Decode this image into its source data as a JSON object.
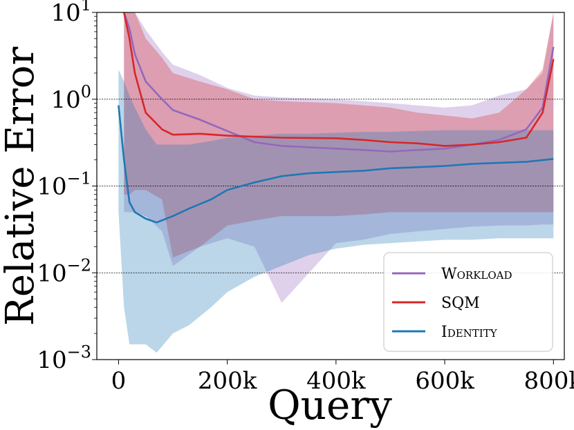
{
  "chart_data": {
    "type": "line",
    "xlabel": "Query",
    "ylabel": "Relative Error",
    "xlim": [
      -40000,
      820000
    ],
    "ylim": [
      0.001,
      10
    ],
    "yscale": "log",
    "grid": "horizontal dashed at 10^-2, 10^-1, 10^0",
    "legend_position": "lower-right",
    "x_ticks": [
      {
        "value": 0,
        "label": "0"
      },
      {
        "value": 200000,
        "label": "200k"
      },
      {
        "value": 400000,
        "label": "400k"
      },
      {
        "value": 600000,
        "label": "600k"
      },
      {
        "value": 800000,
        "label": "800k"
      }
    ],
    "y_ticks": [
      {
        "value": 0.001,
        "base": "10",
        "exp": "−3"
      },
      {
        "value": 0.01,
        "base": "10",
        "exp": "−2"
      },
      {
        "value": 0.1,
        "base": "10",
        "exp": "−1"
      },
      {
        "value": 1,
        "base": "10",
        "exp": "0"
      },
      {
        "value": 10,
        "base": "10",
        "exp": "1"
      }
    ],
    "series": [
      {
        "name": "Workload",
        "color": "#9467bd",
        "x": [
          10000,
          20000,
          30000,
          50000,
          80000,
          100000,
          150000,
          200000,
          250000,
          300000,
          400000,
          450000,
          500000,
          550000,
          600000,
          650000,
          700000,
          750000,
          780000,
          800000
        ],
        "mean": [
          10,
          6.5,
          3.3,
          1.6,
          1.0,
          0.75,
          0.58,
          0.43,
          0.32,
          0.29,
          0.27,
          0.26,
          0.25,
          0.26,
          0.27,
          0.3,
          0.34,
          0.45,
          0.8,
          4.0
        ],
        "upper": [
          10,
          10,
          10,
          6.3,
          3.5,
          2.5,
          1.9,
          1.35,
          1.1,
          1.05,
          1.0,
          0.95,
          0.9,
          0.85,
          0.8,
          0.85,
          1.1,
          1.3,
          2.0,
          10
        ],
        "lower": [
          0.05,
          0.05,
          0.05,
          0.045,
          0.03,
          0.012,
          0.02,
          0.025,
          0.02,
          0.0045,
          0.022,
          0.024,
          0.028,
          0.03,
          0.032,
          0.034,
          0.035,
          0.035,
          0.036,
          0.036
        ]
      },
      {
        "name": "SQM",
        "color": "#d62728",
        "x": [
          10000,
          20000,
          30000,
          50000,
          80000,
          100000,
          150000,
          200000,
          250000,
          300000,
          400000,
          450000,
          500000,
          550000,
          600000,
          650000,
          700000,
          750000,
          780000,
          800000
        ],
        "mean": [
          10,
          5.0,
          2.0,
          0.7,
          0.45,
          0.39,
          0.4,
          0.38,
          0.37,
          0.36,
          0.355,
          0.34,
          0.32,
          0.31,
          0.29,
          0.3,
          0.32,
          0.36,
          0.7,
          2.9
        ],
        "upper": [
          10,
          10,
          10,
          5.0,
          3.0,
          2.0,
          1.6,
          1.3,
          1.0,
          0.95,
          0.9,
          0.85,
          0.8,
          0.7,
          0.65,
          0.6,
          0.7,
          1.3,
          2.2,
          10
        ],
        "lower": [
          0.08,
          0.08,
          0.09,
          0.09,
          0.07,
          0.015,
          0.02,
          0.035,
          0.04,
          0.045,
          0.045,
          0.047,
          0.05,
          0.05,
          0.05,
          0.05,
          0.05,
          0.05,
          0.05,
          0.05
        ]
      },
      {
        "name": "Identity",
        "color": "#1f77b4",
        "x": [
          0,
          10000,
          20000,
          30000,
          50000,
          70000,
          100000,
          130000,
          170000,
          200000,
          250000,
          300000,
          350000,
          400000,
          450000,
          500000,
          550000,
          600000,
          650000,
          700000,
          750000,
          800000
        ],
        "mean": [
          0.85,
          0.2,
          0.065,
          0.05,
          0.042,
          0.038,
          0.045,
          0.055,
          0.07,
          0.09,
          0.11,
          0.13,
          0.14,
          0.145,
          0.15,
          0.16,
          0.165,
          0.17,
          0.18,
          0.185,
          0.19,
          0.205
        ],
        "upper": [
          2.2,
          1.6,
          1.1,
          0.8,
          0.45,
          0.3,
          0.3,
          0.3,
          0.33,
          0.36,
          0.38,
          0.4,
          0.4,
          0.41,
          0.42,
          0.42,
          0.43,
          0.44,
          0.44,
          0.44,
          0.44,
          0.44
        ],
        "lower": [
          0.05,
          0.004,
          0.0015,
          0.0015,
          0.0015,
          0.0012,
          0.002,
          0.0025,
          0.004,
          0.006,
          0.009,
          0.012,
          0.016,
          0.019,
          0.021,
          0.022,
          0.023,
          0.024,
          0.024,
          0.025,
          0.025,
          0.025
        ]
      }
    ],
    "legend": [
      {
        "label": "Workload",
        "color": "#9467bd"
      },
      {
        "label": "SQM",
        "color": "#d62728"
      },
      {
        "label": "Identity",
        "color": "#1f77b4"
      }
    ]
  }
}
